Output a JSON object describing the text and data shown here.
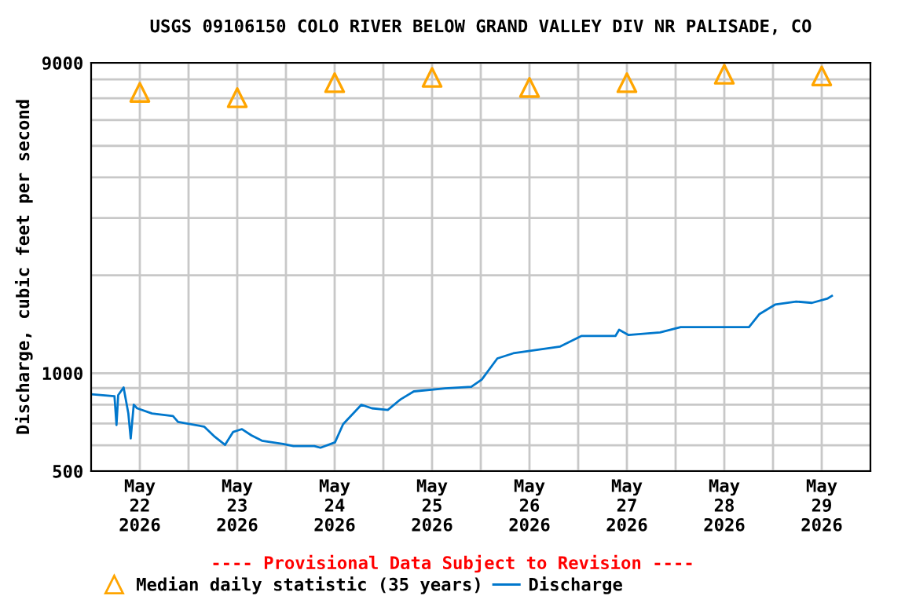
{
  "chart_data": {
    "type": "line",
    "title": "USGS 09106150 COLO RIVER BELOW GRAND VALLEY DIV NR PALISADE, CO",
    "ylabel": "Discharge, cubic feet per second",
    "log": "y",
    "grid": true,
    "legend": "bottom",
    "xlim": [
      "2026-05-22T00:00",
      "2026-05-30T00:00"
    ],
    "xticks": [
      {
        "value": "2026-05-22T12:00",
        "label": "May\n22\n2026"
      },
      {
        "value": "2026-05-23T12:00",
        "label": "May\n23\n2026"
      },
      {
        "value": "2026-05-24T12:00",
        "label": "May\n24\n2026"
      },
      {
        "value": "2026-05-25T12:00",
        "label": "May\n25\n2026"
      },
      {
        "value": "2026-05-26T12:00",
        "label": "May\n26\n2026"
      },
      {
        "value": "2026-05-27T12:00",
        "label": "May\n27\n2026"
      },
      {
        "value": "2026-05-28T12:00",
        "label": "May\n28\n2026"
      },
      {
        "value": "2026-05-29T12:00",
        "label": "May\n29\n2026"
      },
      {
        "value": "2026-05-23T00:00",
        "label": null
      },
      {
        "value": "2026-05-24T00:00",
        "label": null
      },
      {
        "value": "2026-05-25T00:00",
        "label": null
      },
      {
        "value": "2026-05-26T00:00",
        "label": null
      },
      {
        "value": "2026-05-27T00:00",
        "label": null
      },
      {
        "value": "2026-05-28T00:00",
        "label": null
      },
      {
        "value": "2026-05-29T00:00",
        "label": null
      }
    ],
    "ylim": [
      500,
      9000
    ],
    "yticks": [
      500,
      {
        "value": 600,
        "label": null
      },
      {
        "value": 700,
        "label": null
      },
      {
        "value": 800,
        "label": null
      },
      {
        "value": 900,
        "label": null
      },
      1000,
      {
        "value": 2000,
        "label": null
      },
      {
        "value": 3000,
        "label": null
      },
      {
        "value": 4000,
        "label": null
      },
      {
        "value": 5000,
        "label": null
      },
      {
        "value": 6000,
        "label": null
      },
      {
        "value": 7000,
        "label": null
      },
      {
        "value": 8000,
        "label": null
      },
      9000
    ],
    "annotations": [
      "---- Provisional Data Subject to Revision ----"
    ],
    "series": [
      {
        "name": "Median daily statistic (35 years)",
        "type": "scatter",
        "marker": "triangle",
        "color": "#ffa500",
        "x": [
          "2026-05-22T12:00",
          "2026-05-23T12:00",
          "2026-05-24T12:00",
          "2026-05-25T12:00",
          "2026-05-26T12:00",
          "2026-05-27T12:00",
          "2026-05-28T12:00",
          "2026-05-29T12:00"
        ],
        "values": [
          7300,
          7030,
          7820,
          8120,
          7560,
          7820,
          8300,
          8200
        ]
      },
      {
        "name": "Discharge",
        "line_style": "solid",
        "color": "#0077cc",
        "x": [
          "2026-05-22T00:00",
          "2026-05-22T05:45",
          "2026-05-22T06:15",
          "2026-05-22T06:40",
          "2026-05-22T08:00",
          "2026-05-22T09:10",
          "2026-05-22T09:45",
          "2026-05-22T10:30",
          "2026-05-22T11:20",
          "2026-05-22T15:00",
          "2026-05-22T20:10",
          "2026-05-22T21:25",
          "2026-05-23T03:50",
          "2026-05-23T06:30",
          "2026-05-23T09:00",
          "2026-05-23T11:00",
          "2026-05-23T13:10",
          "2026-05-23T15:30",
          "2026-05-23T18:05",
          "2026-05-23T23:15",
          "2026-05-24T01:50",
          "2026-05-24T07:00",
          "2026-05-24T08:30",
          "2026-05-24T12:05",
          "2026-05-24T14:05",
          "2026-05-24T18:35",
          "2026-05-24T21:10",
          "2026-05-25T01:05",
          "2026-05-25T04:15",
          "2026-05-25T07:30",
          "2026-05-25T15:15",
          "2026-05-25T21:40",
          "2026-05-26T00:15",
          "2026-05-26T04:05",
          "2026-05-26T08:00",
          "2026-05-26T19:35",
          "2026-05-27T00:45",
          "2026-05-27T09:10",
          "2026-05-27T10:05",
          "2026-05-27T12:25",
          "2026-05-27T20:10",
          "2026-05-28T01:15",
          "2026-05-28T18:05",
          "2026-05-28T20:40",
          "2026-05-29T00:30",
          "2026-05-29T05:40",
          "2026-05-29T09:35",
          "2026-05-29T13:30",
          "2026-05-29T14:30"
        ],
        "values": [
          862,
          850,
          693,
          856,
          904,
          752,
          630,
          800,
          780,
          752,
          738,
          708,
          685,
          637,
          602,
          660,
          673,
          644,
          620,
          606,
          597,
          597,
          590,
          613,
          697,
          800,
          780,
          771,
          831,
          879,
          898,
          908,
          956,
          1110,
          1151,
          1208,
          1301,
          1301,
          1360,
          1310,
          1335,
          1386,
          1386,
          1520,
          1625,
          1661,
          1645,
          1698,
          1728
        ]
      }
    ]
  }
}
